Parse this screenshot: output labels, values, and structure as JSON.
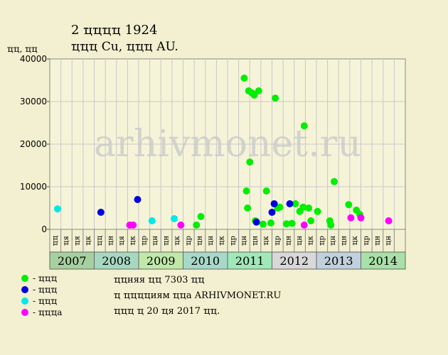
{
  "chart_data": {
    "type": "scatter",
    "title": "2 ҵҵҵҵ 1924",
    "subtitle": "ҵҵҵ Cu, ҵҵҵ AU.",
    "ylabel": "ҵҵ, ҵҵ",
    "ylim": [
      0,
      40000
    ],
    "yticks": [
      "0",
      "10000",
      "20000",
      "30000",
      "40000"
    ],
    "years": [
      "2007",
      "2008",
      "2009",
      "2010",
      "2011",
      "2012",
      "2013",
      "2014"
    ],
    "year_colors": [
      "#a6d0a0",
      "#a6d8c0",
      "#c0e8a8",
      "#a8d8c8",
      "#a0e8b8",
      "#d8d8d8",
      "#c0d0dc",
      "#a8e0a8"
    ],
    "quarter_labels": [
      "ҵҵ",
      "ҵя",
      "ҵя",
      "ҵк",
      "ҵҵ",
      "ҵн",
      "ҵя",
      "ҵк",
      "ҵр",
      "ҵн",
      "ҵн",
      "ҵк",
      "ҵр",
      "ҵн",
      "ҵн",
      "ҵк",
      "ҵр",
      "ҵн",
      "ҵн",
      "ҵк",
      "ҵр",
      "ҵн",
      "ҵн",
      "ҵк",
      "ҵр",
      "ҵн",
      "ҵн",
      "ҵк",
      "ҵр",
      "ҵн",
      "ҵн"
    ],
    "x_unit": "quarter index from 2007 Q1 (0 = Q1 2007)",
    "series": [
      {
        "name": "- ҵҵҵ",
        "color": "#00ee00",
        "points": [
          [
            12.7,
            1000
          ],
          [
            13.1,
            3000
          ],
          [
            17.0,
            35500
          ],
          [
            17.2,
            9000
          ],
          [
            17.3,
            5000
          ],
          [
            17.4,
            32500
          ],
          [
            17.5,
            15800
          ],
          [
            17.7,
            32000
          ],
          [
            17.9,
            31500
          ],
          [
            18.0,
            2000
          ],
          [
            18.3,
            32500
          ],
          [
            18.7,
            1200
          ],
          [
            19.0,
            9000
          ],
          [
            19.4,
            1500
          ],
          [
            19.8,
            30800
          ],
          [
            20.0,
            5000
          ],
          [
            20.2,
            5200
          ],
          [
            20.8,
            1300
          ],
          [
            21.3,
            1400
          ],
          [
            21.6,
            6000
          ],
          [
            22.0,
            4200
          ],
          [
            22.3,
            5200
          ],
          [
            22.4,
            24300
          ],
          [
            22.8,
            5000
          ],
          [
            23.0,
            2000
          ],
          [
            23.6,
            4200
          ],
          [
            24.7,
            2000
          ],
          [
            24.8,
            1000
          ],
          [
            25.1,
            11200
          ],
          [
            26.4,
            5800
          ],
          [
            27.1,
            4500
          ],
          [
            27.4,
            3500
          ]
        ]
      },
      {
        "name": "- ҵҵҵ",
        "color": "#0000dd",
        "points": [
          [
            4.1,
            4000
          ],
          [
            7.4,
            7000
          ],
          [
            18.1,
            1700
          ],
          [
            19.5,
            4000
          ],
          [
            19.7,
            6000
          ],
          [
            21.1,
            6000
          ]
        ]
      },
      {
        "name": "- ҵҵҵ",
        "color": "#00e8e8",
        "points": [
          [
            0.2,
            4800
          ],
          [
            8.7,
            2000
          ],
          [
            10.7,
            2500
          ]
        ]
      },
      {
        "name": "- ҵҵҵа",
        "color": "#ff00ff",
        "points": [
          [
            6.7,
            1000
          ],
          [
            7.0,
            1000
          ],
          [
            11.3,
            1000
          ],
          [
            22.4,
            1000
          ],
          [
            26.6,
            2700
          ],
          [
            27.5,
            2700
          ],
          [
            30.0,
            2000
          ]
        ]
      }
    ]
  },
  "notes": {
    "line1": "ҵҵняя ҵҵ 7303 ҵҵ",
    "line2": "ҵ ҵҵҵҵиям ҵҵа ARHIVMONET.RU",
    "line3": "ҵҵҵ ҵ 20 ҵя 2017 ҵҵ."
  },
  "watermark": "arhivmonet.ru"
}
